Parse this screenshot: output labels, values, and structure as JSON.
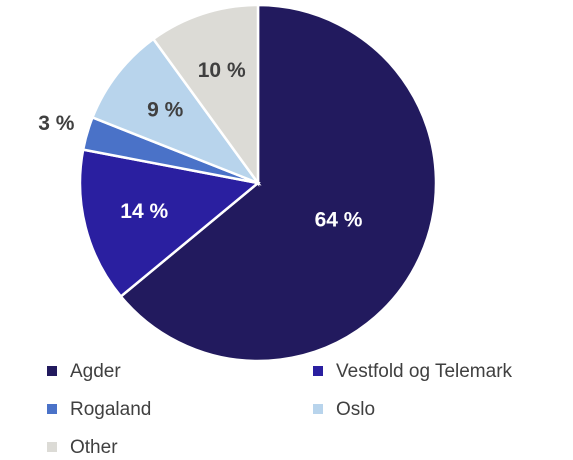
{
  "chart_data": {
    "type": "pie",
    "categories": [
      "Agder",
      "Vestfold og Telemark",
      "Rogaland",
      "Oslo",
      "Other"
    ],
    "values": [
      64,
      14,
      3,
      9,
      10
    ],
    "value_labels": [
      "64 %",
      "14 %",
      "3 %",
      "9 %",
      "10 %"
    ],
    "colors": [
      "#221a5e",
      "#2a1fa0",
      "#4a72c8",
      "#b8d4ec",
      "#dcdbd6"
    ],
    "legend": "bottom"
  }
}
